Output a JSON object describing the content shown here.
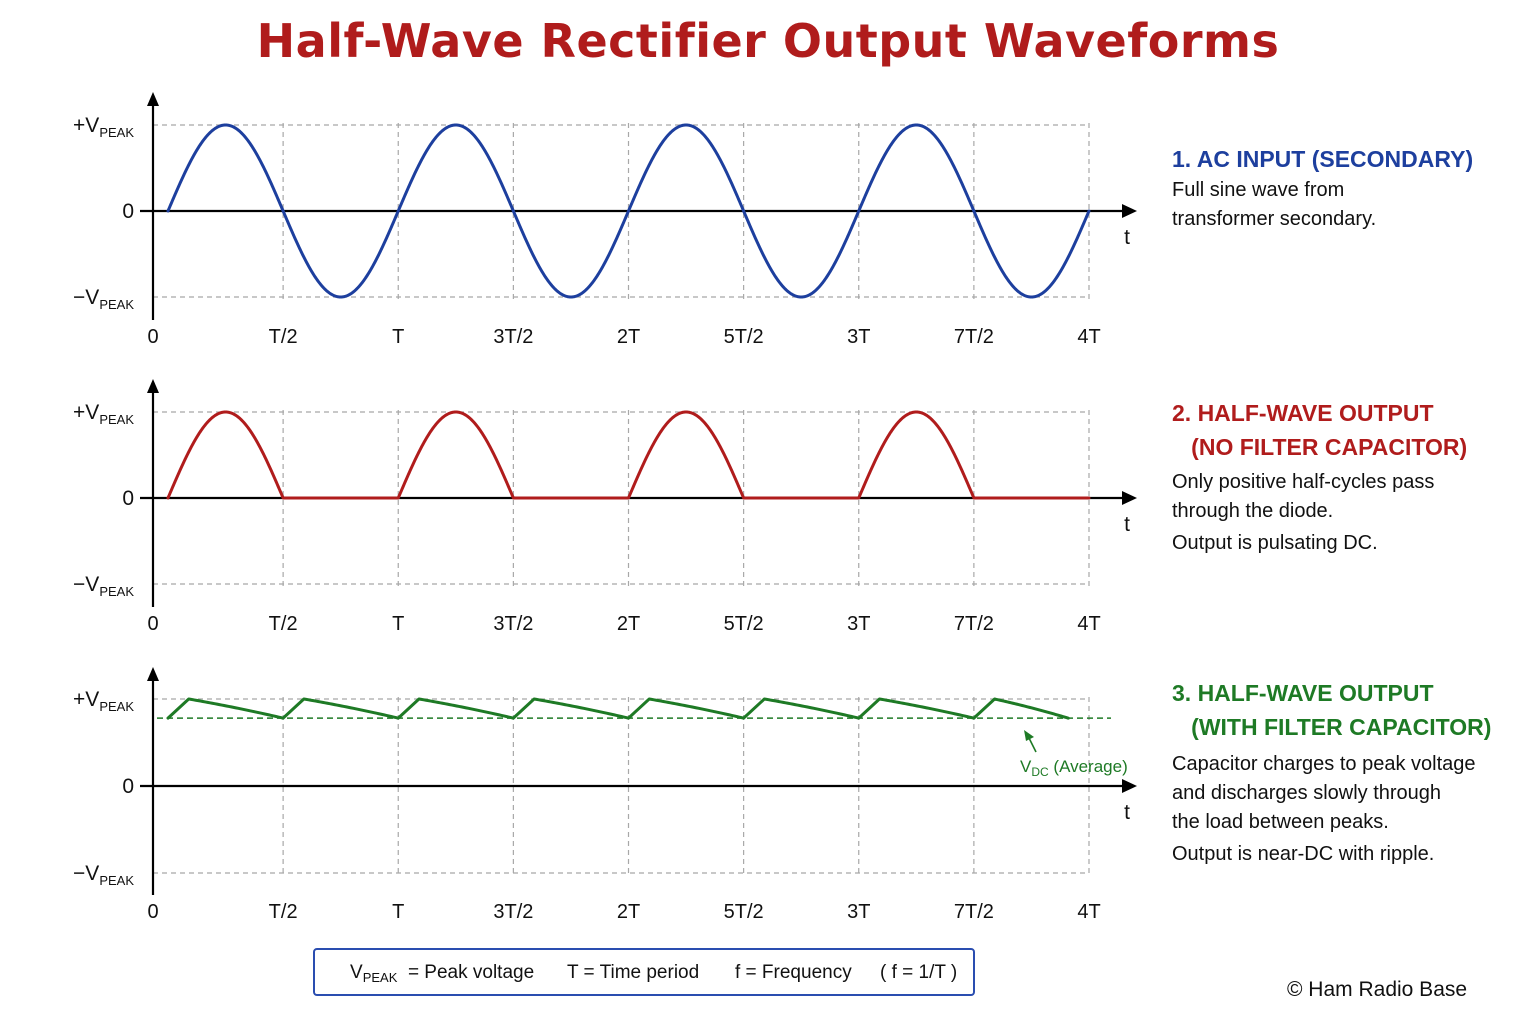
{
  "title": "Half-Wave Rectifier Output Waveforms",
  "colors": {
    "title": "#b01c1c",
    "ac": "#1d3f9e",
    "halfwave": "#b01c1c",
    "filtered": "#1e7a25",
    "grid": "#a8a8a8",
    "axis": "#000000",
    "legend_border": "#2a4db0"
  },
  "y_labels": {
    "pos_main": "+V",
    "pos_sub": "PEAK",
    "zero": "0",
    "neg_main": "−V",
    "neg_sub": "PEAK"
  },
  "t_label": "t",
  "chart_data": [
    {
      "type": "line",
      "title": "",
      "xlabel": "t",
      "ylabel": "",
      "x_ticks": [
        "0",
        "T/2",
        "T",
        "3T/2",
        "2T",
        "5T/2",
        "3T",
        "7T/2",
        "4T"
      ],
      "xlim": [
        0,
        4
      ],
      "ylim": [
        -1,
        1
      ],
      "grid": true,
      "series": [
        {
          "name": "",
          "function": "sin",
          "amplitude": 1,
          "periods": 4
        }
      ]
    },
    {
      "type": "line",
      "title": "",
      "xlabel": "t",
      "ylabel": "",
      "x_ticks": [
        "0",
        "T/2",
        "T",
        "3T/2",
        "2T",
        "5T/2",
        "3T",
        "7T/2",
        "4T"
      ],
      "xlim": [
        0,
        4
      ],
      "ylim": [
        -1,
        1
      ],
      "grid": true,
      "series": [
        {
          "name": "",
          "function": "half-wave rectified sin",
          "amplitude": 1,
          "periods": 4
        }
      ]
    },
    {
      "type": "line",
      "title": "",
      "xlabel": "t",
      "ylabel": "",
      "x_ticks": [
        "0",
        "T/2",
        "T",
        "3T/2",
        "2T",
        "5T/2",
        "3T",
        "7T/2",
        "4T"
      ],
      "xlim": [
        0,
        4
      ],
      "ylim": [
        -1,
        1
      ],
      "grid": true,
      "series": [
        {
          "name": "",
          "function": "filtered ripple",
          "peak": 1.0,
          "trough": 0.78,
          "periods": 8
        }
      ],
      "reference_line": {
        "y": 0.78,
        "style": "dashed"
      },
      "annotation": {
        "main": "V",
        "sub": "DC",
        "text": "(Average)"
      }
    }
  ],
  "panels": [
    {
      "title_lines": [
        "1. AC INPUT (SECONDARY)"
      ],
      "desc_lines": [
        "Full sine wave from",
        "transformer secondary."
      ],
      "note_lines": []
    },
    {
      "title_lines": [
        "2. HALF-WAVE OUTPUT",
        "   (NO FILTER CAPACITOR)"
      ],
      "desc_lines": [
        "Only positive half-cycles pass",
        "through the diode."
      ],
      "note_lines": [
        "Output is pulsating DC."
      ]
    },
    {
      "title_lines": [
        "3. HALF-WAVE OUTPUT",
        "   (WITH FILTER CAPACITOR)"
      ],
      "desc_lines": [
        "Capacitor charges to peak voltage",
        "and discharges slowly through",
        "the load between peaks."
      ],
      "note_lines": [
        "Output is near-DC with ripple."
      ]
    }
  ],
  "legend": {
    "vpeak_main": "V",
    "vpeak_sub": "PEAK",
    "vpeak_text": "=  Peak voltage",
    "t_text": "T  =  Time period",
    "f_text": "f  =  Frequency",
    "relation": "( f = 1/T )"
  },
  "copyright": "© Ham Radio Base"
}
